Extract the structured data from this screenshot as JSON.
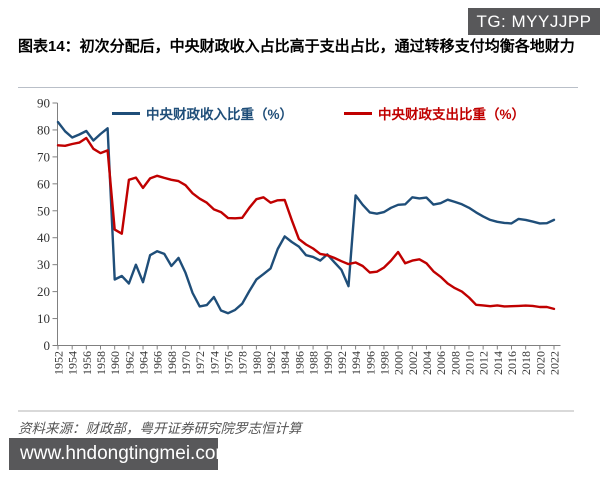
{
  "badge": {
    "text": "TG: MYYJJPP"
  },
  "title": "图表14：初次分配后，中央财政收入占比高于支出占比，通过转移支付均衡各地财力",
  "source_note": "资料来源：财政部，粤开证券研究院罗志恒计算",
  "watermark": "www.hndongtingmei.com",
  "colors": {
    "revenue": "#1F4E79",
    "expenditure": "#C00000",
    "badge_bg": "#58585A",
    "axis": "#808080"
  },
  "chart_data": {
    "type": "line",
    "title": "",
    "xlabel": "",
    "ylabel": "",
    "ylim": [
      0,
      90
    ],
    "ytick_step": 10,
    "xtick_step": 2,
    "grid": false,
    "legend_position": "top",
    "x": [
      1952,
      1953,
      1954,
      1955,
      1956,
      1957,
      1958,
      1959,
      1960,
      1961,
      1962,
      1963,
      1964,
      1965,
      1966,
      1967,
      1968,
      1969,
      1970,
      1971,
      1972,
      1973,
      1974,
      1975,
      1976,
      1977,
      1978,
      1979,
      1980,
      1981,
      1982,
      1983,
      1984,
      1985,
      1986,
      1987,
      1988,
      1989,
      1990,
      1991,
      1992,
      1993,
      1994,
      1995,
      1996,
      1997,
      1998,
      1999,
      2000,
      2001,
      2002,
      2003,
      2004,
      2005,
      2006,
      2007,
      2008,
      2009,
      2010,
      2011,
      2012,
      2013,
      2014,
      2015,
      2016,
      2017,
      2018,
      2019,
      2020,
      2021,
      2022
    ],
    "series": [
      {
        "name": "中央财政收入比重（%）",
        "color": "#1F4E79",
        "values": [
          82.9,
          79.5,
          77.2,
          78.3,
          79.6,
          76.1,
          78.5,
          80.6,
          24.5,
          25.8,
          23,
          30,
          23.5,
          33.5,
          35,
          34,
          29.5,
          32.5,
          27,
          19.5,
          14.5,
          15,
          18,
          13,
          12,
          13.2,
          15.5,
          20.2,
          24.5,
          26.5,
          28.6,
          35.8,
          40.5,
          38.4,
          36.7,
          33.5,
          32.9,
          31.5,
          33.8,
          30.9,
          28.1,
          22,
          55.7,
          52.2,
          49.4,
          48.9,
          49.5,
          51.1,
          52.2,
          52.4,
          55,
          54.6,
          54.9,
          52.3,
          52.8,
          54.1,
          53.3,
          52.4,
          51.1,
          49.4,
          47.9,
          46.6,
          45.9,
          45.5,
          45.3,
          47,
          46.6,
          46,
          45.3,
          45.4,
          46.6
        ]
      },
      {
        "name": "中央财政支出比重（%）",
        "color": "#C00000",
        "values": [
          74.3,
          74.1,
          74.8,
          75.3,
          77,
          73,
          71.4,
          72.4,
          43,
          41.5,
          61.5,
          62.3,
          58.5,
          62,
          63,
          62.2,
          61.5,
          61,
          59.5,
          56.5,
          54.5,
          53,
          50.5,
          49.5,
          47.3,
          47.2,
          47.4,
          51.1,
          54.3,
          55,
          53,
          53.9,
          54,
          46.5,
          39.5,
          37.5,
          36,
          34,
          33.5,
          32.5,
          31.3,
          30.2,
          30.8,
          29.5,
          27.1,
          27.4,
          28.9,
          31.5,
          34.7,
          30.5,
          31.5,
          32,
          30.5,
          27.5,
          25.5,
          23,
          21.3,
          20,
          17.8,
          15.1,
          14.9,
          14.6,
          14.9,
          14.5,
          14.6,
          14.7,
          14.8,
          14.7,
          14.3,
          14.3,
          13.6
        ]
      }
    ]
  }
}
